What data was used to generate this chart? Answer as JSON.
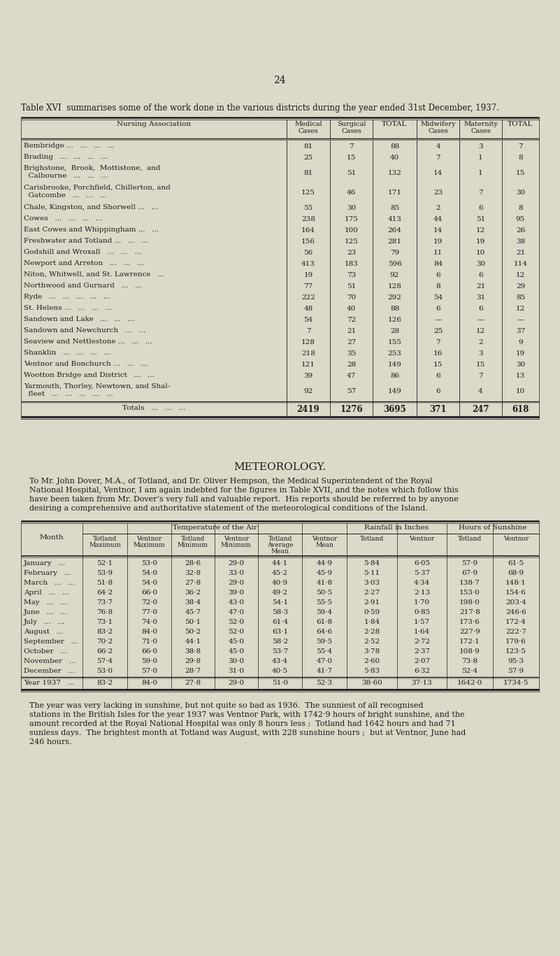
{
  "page_number": "24",
  "table1_title": "Table XVI  summarises some of the work done in the various districts during the year ended 31st December, 1937.",
  "table1_rows": [
    [
      "Bembridge ...   ...   ...   ...",
      "81",
      "7",
      "88",
      "4",
      "3",
      "7"
    ],
    [
      "Brading   ...   ...   ...   ...",
      "25",
      "15",
      "40",
      "7",
      "1",
      "8"
    ],
    [
      "Brighstone,  Brook,  Mottistone,  and\n  Calbourne   ...   ...   ...",
      "81",
      "51",
      "132",
      "14",
      "1",
      "15"
    ],
    [
      "Carisbrooke, Porchfield, Chillerton, and\n  Gatcombe   ...   ...   ...",
      "125",
      "46",
      "171",
      "23",
      "7",
      "30"
    ],
    [
      "Chale, Kingston, and Shorwell ...   ...",
      "55",
      "30",
      "85",
      "2",
      "6",
      "8"
    ],
    [
      "Cowes   ...   ...   ...   ...",
      "238",
      "175",
      "413",
      "44",
      "51",
      "95"
    ],
    [
      "East Cowes and Whippingham ...   ...",
      "164",
      "100",
      "264",
      "14",
      "12",
      "26"
    ],
    [
      "Freshwater and Totland ...   ...   ...",
      "156",
      "125",
      "281",
      "19",
      "19",
      "38"
    ],
    [
      "Godshill and Wroxall   ...   ...   ...",
      "56",
      "23",
      "79",
      "11",
      "10",
      "21"
    ],
    [
      "Newport and Arreton   ...   ...   ...",
      "413",
      "183",
      "596",
      "84",
      "30",
      "114"
    ],
    [
      "Niton, Whitwell, and St. Lawrence   ...",
      "19",
      "73",
      "92",
      "6",
      "6",
      "12"
    ],
    [
      "Northwood and Gurnard   ...   ...",
      "77",
      "51",
      "128",
      "8",
      "21",
      "29"
    ],
    [
      "Ryde   ...   ...   ...   ...   ...",
      "222",
      "70",
      "292",
      "54",
      "31",
      "85"
    ],
    [
      "St. Helens ...   ...   ...   ...",
      "48",
      "40",
      "88",
      "6",
      "6",
      "12"
    ],
    [
      "Sandown and Lake   ...   ...   ...",
      "54",
      "72",
      "126",
      "—",
      "—",
      "—"
    ],
    [
      "Sandown and Newchurch   ...   ...",
      "7",
      "21",
      "28",
      "25",
      "12",
      "37"
    ],
    [
      "Seaview and Nettlestone ...   ...   ...",
      "128",
      "27",
      "155",
      "7",
      "2",
      "9"
    ],
    [
      "Shanklin   ...   ...   ...   ...",
      "218",
      "35",
      "253",
      "16",
      "3",
      "19"
    ],
    [
      "Ventnor and Bonchurch ...   ...   ...",
      "121",
      "28",
      "149",
      "15",
      "15",
      "30"
    ],
    [
      "Wootton Bridge and District   ...   ...",
      "39",
      "47",
      "86",
      "6",
      "7",
      "13"
    ],
    [
      "Yarmouth, Thorley, Newtown, and Shal-\n  fleet   ...   ...   ...   ...   ...",
      "92",
      "57",
      "149",
      "6",
      "4",
      "10"
    ]
  ],
  "table1_totals": [
    "Totals   ...   ...   ...",
    "2419",
    "1276",
    "3695",
    "371",
    "247",
    "618"
  ],
  "meteorology_heading": "METEOROLOGY.",
  "meteorology_para": "To Mr. John Dover, M.A., of Totland, and Dr. Oliver Hempson, the Medical Superintendent of the Royal\nNational Hospital, Ventnor, I am again indebted for the figures in Table XVII, and the notes which follow this\nhave been taken from Mr. Dover’s very full and valuable report.  His reports should be referred to by anyone\ndesiring a comprehensive and authoritative statement of the meteorological conditions of the Island.",
  "table2_rows": [
    [
      "January   ...",
      "52·1",
      "53·0",
      "28·6",
      "29·0",
      "44·1",
      "44·9",
      "5·84",
      "6·05",
      "57·9",
      "61·5"
    ],
    [
      "February   ...",
      "53·9",
      "54·0",
      "32·8",
      "33·0",
      "45·2",
      "45·9",
      "5·11",
      "5·37",
      "67·9",
      "68·9"
    ],
    [
      "March   ...   ...",
      "51·8",
      "54·0",
      "27·8",
      "29·0",
      "40·9",
      "41·8",
      "3·03",
      "4·34",
      "138·7",
      "148·1"
    ],
    [
      "April   ...   ...",
      "64·2",
      "66·0",
      "36·2",
      "39·0",
      "49·2",
      "50·5",
      "2·27",
      "2·13",
      "153·0",
      "154·6"
    ],
    [
      "May   ...   ...",
      "73·7",
      "72·0",
      "38·4",
      "43·0",
      "54·1",
      "55·5",
      "2·91",
      "1·70",
      "198·0",
      "203·4"
    ],
    [
      "June   ...   ...",
      "76·8",
      "77·0",
      "45·7",
      "47·0",
      "58·3",
      "59·4",
      "0·59",
      "0·85",
      "217·8",
      "246·6"
    ],
    [
      "July   ...   ...",
      "73·1",
      "74·0",
      "50·1",
      "52·0",
      "61·4",
      "61·8",
      "1·84",
      "1·57",
      "173·6",
      "172·4"
    ],
    [
      "August   ...",
      "83·2",
      "84·0",
      "50·2",
      "52·0",
      "63·1",
      "64·6",
      "2·28",
      "1·64",
      "227·9",
      "222·7"
    ],
    [
      "September   ...",
      "70·2",
      "71·0",
      "44·1",
      "45·0",
      "58·2",
      "59·5",
      "2·52",
      "2·72",
      "172·1",
      "179·6"
    ],
    [
      "October   ...",
      "66·2",
      "66·0",
      "38·8",
      "45·0",
      "53·7",
      "55·4",
      "3·78",
      "2·37",
      "108·9",
      "123·5"
    ],
    [
      "November   ...",
      "57·4",
      "59·0",
      "29·8",
      "30·0",
      "43·4",
      "47·0",
      "2·60",
      "2·07",
      "73·8",
      "95·3"
    ],
    [
      "December   ...",
      "53·0",
      "57·0",
      "28·7",
      "31·0",
      "40·5",
      "41·7",
      "5·83",
      "6·32",
      "52·4",
      "57·9"
    ]
  ],
  "table2_year": [
    "Year 1937   ...",
    "83·2",
    "84·0",
    "27·8",
    "29·0",
    "51·0",
    "52·3",
    "38·60",
    "37·13",
    "1642·0",
    "1734·5"
  ],
  "footer_text": "The year was very lacking in sunshine, but not quite so bad as 1936.  The sunniest of all recognised\nstations in the British Isles for the year 1937 was Ventnor Park, with 1742·9 hours of bright sunshine, and the\namount recorded at the Royal National Hospital was only 8 hours less ;  Totland had 1642 hours and had 71\nsunless days.  The brightest month at Totland was August, with 228 sunshine hours ;  but at Ventnor, June had\n246 hours.",
  "bg_color": "#ddd9c8",
  "text_color": "#1a1a1a",
  "line_color": "#1a1a1a"
}
